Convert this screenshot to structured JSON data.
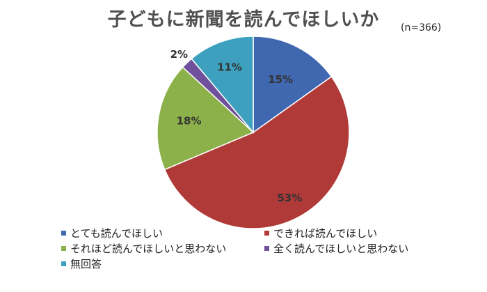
{
  "chart_data": {
    "type": "pie",
    "title": "子どもに新聞を読んでほしいか",
    "subtitle": "(n=366)",
    "series": [
      {
        "name": "とても読んでほしい",
        "value": 15,
        "label": "15%",
        "color": "#4068B0"
      },
      {
        "name": "できれば読んでほしい",
        "value": 53,
        "label": "53%",
        "color": "#B03A38"
      },
      {
        "name": "それほど読んでほしいと思わない",
        "value": 18,
        "label": "18%",
        "color": "#8CB04A"
      },
      {
        "name": "全く読んでほしいと思わない",
        "value": 2,
        "label": "2%",
        "color": "#70509A"
      },
      {
        "name": "無回答",
        "value": 11,
        "label": "11%",
        "color": "#3CA0BE"
      }
    ],
    "legend_position": "bottom"
  }
}
